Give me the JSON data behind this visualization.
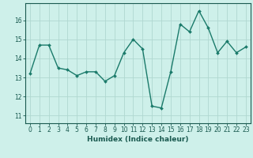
{
  "x": [
    0,
    1,
    2,
    3,
    4,
    5,
    6,
    7,
    8,
    9,
    10,
    11,
    12,
    13,
    14,
    15,
    16,
    17,
    18,
    19,
    20,
    21,
    22,
    23
  ],
  "y": [
    13.2,
    14.7,
    14.7,
    13.5,
    13.4,
    13.1,
    13.3,
    13.3,
    12.8,
    13.1,
    14.3,
    15.0,
    14.5,
    11.5,
    11.4,
    13.3,
    15.8,
    15.4,
    16.5,
    15.6,
    14.3,
    14.9,
    14.3,
    14.6
  ],
  "line_color": "#1a7a6a",
  "marker": "D",
  "marker_size": 2.0,
  "line_width": 1.0,
  "bg_color": "#cef0ea",
  "grid_color": "#b0d8d0",
  "xlabel": "Humidex (Indice chaleur)",
  "ylim": [
    10.6,
    16.9
  ],
  "xlim": [
    -0.5,
    23.5
  ],
  "yticks": [
    11,
    12,
    13,
    14,
    15,
    16
  ],
  "xticks": [
    0,
    1,
    2,
    3,
    4,
    5,
    6,
    7,
    8,
    9,
    10,
    11,
    12,
    13,
    14,
    15,
    16,
    17,
    18,
    19,
    20,
    21,
    22,
    23
  ],
  "xtick_labels": [
    "0",
    "1",
    "2",
    "3",
    "4",
    "5",
    "6",
    "7",
    "8",
    "9",
    "10",
    "11",
    "12",
    "13",
    "14",
    "15",
    "16",
    "17",
    "18",
    "19",
    "20",
    "21",
    "22",
    "23"
  ],
  "tick_color": "#1a5a50",
  "label_fontsize": 6.5,
  "tick_fontsize": 5.5,
  "spine_color": "#1a5a50",
  "grid_linewidth": 0.6
}
